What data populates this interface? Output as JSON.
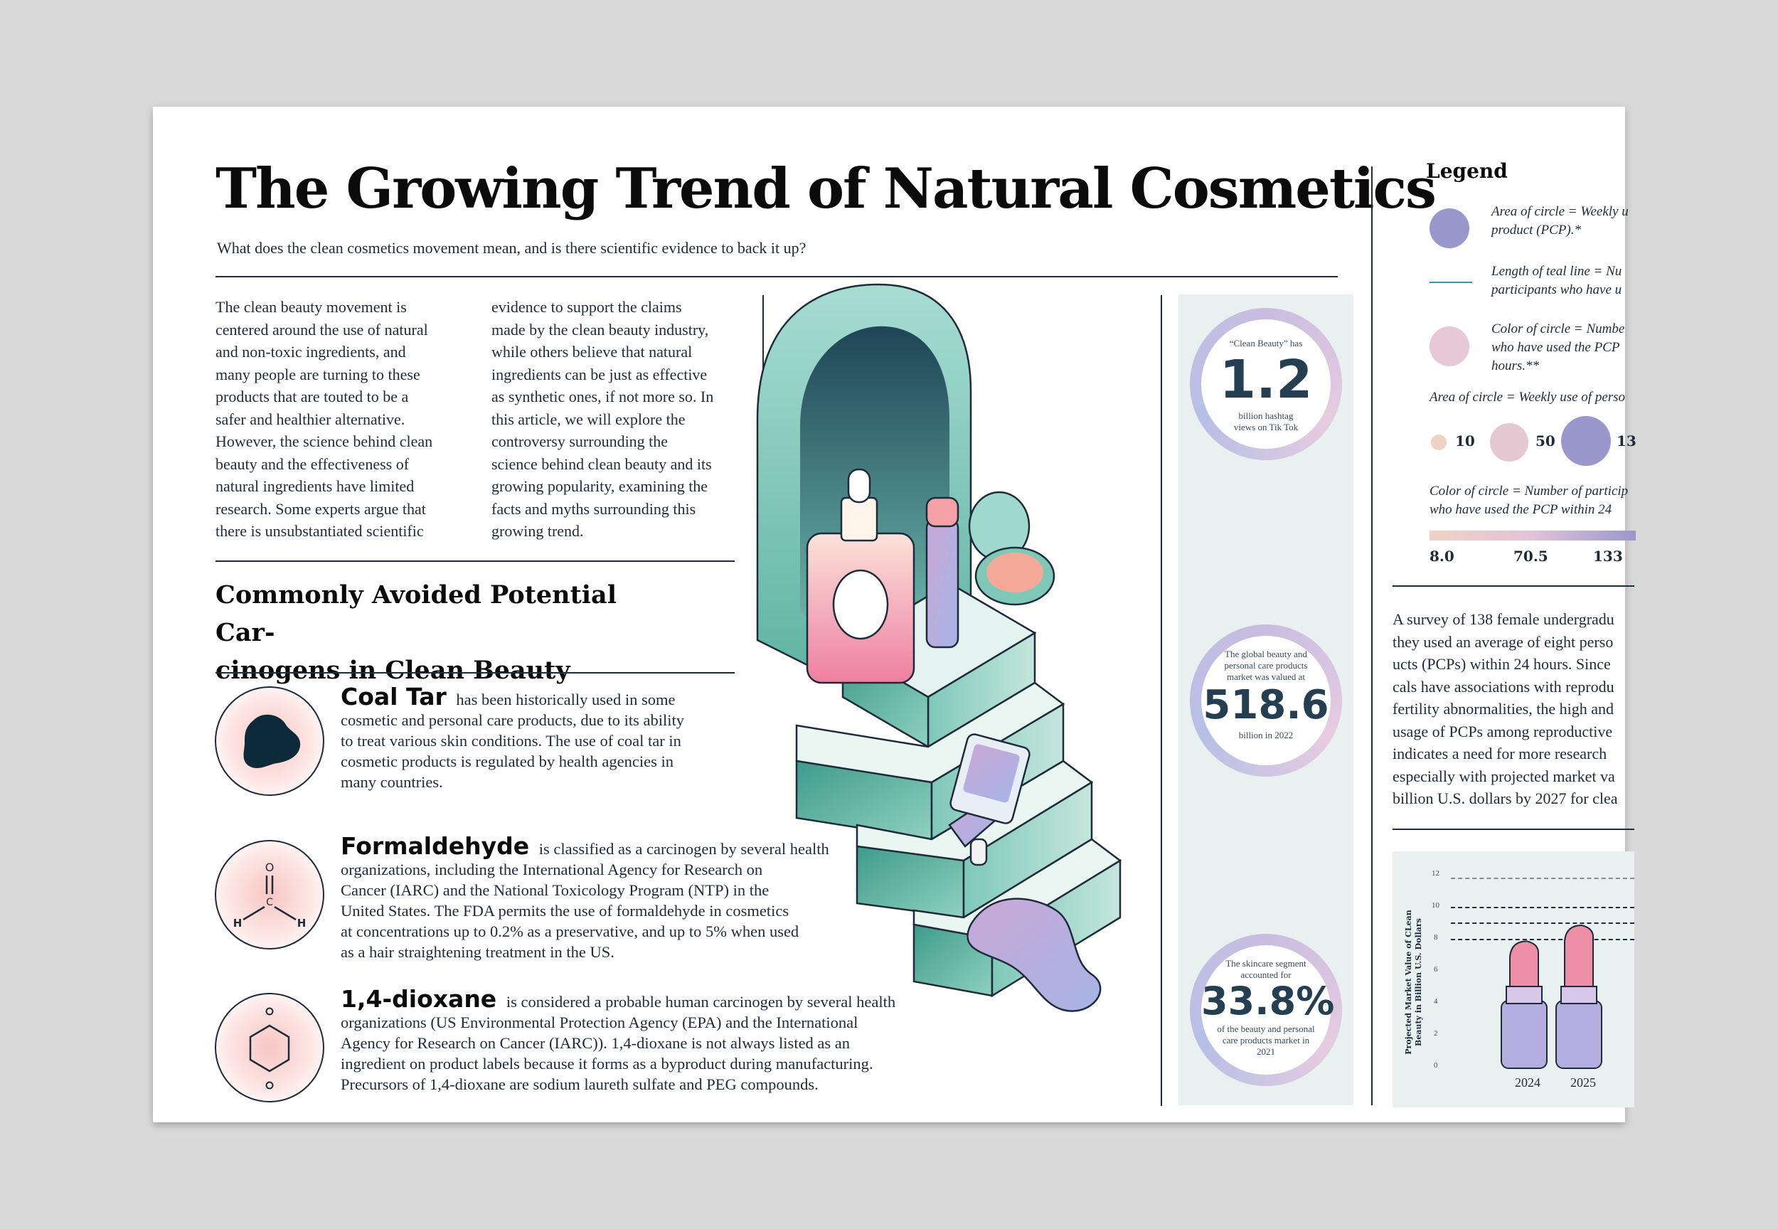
{
  "header": {
    "title": "The Growing Trend of Natural Cosmetics",
    "subtitle": "What does the clean cosmetics movement mean, and is there scientific evidence to back it up?"
  },
  "intro": {
    "col1": [
      "The clean beauty movement is",
      "centered around the use of natural",
      "and non-toxic ingredients, and",
      "many people are turning to these",
      "products that are touted to be a",
      "safer and healthier alternative.",
      "However, the science behind clean",
      "beauty and the effectiveness of",
      "natural ingredients have limited",
      "research. Some experts argue that",
      "there is unsubstantiated scientific"
    ],
    "col2": [
      "evidence to support the claims",
      "made by the clean beauty industry,",
      "while others believe that natural",
      "ingredients can be just as effective",
      "as synthetic ones, if not more so. In",
      "this article, we will explore the",
      "controversy surrounding the",
      "science behind clean beauty and its",
      "growing popularity, examining the",
      "facts and myths surrounding this",
      "growing trend."
    ]
  },
  "carcinogens": {
    "title_lines": [
      "Commonly Avoided Potential Car-",
      "cinogens  in Clean Beauty"
    ],
    "items": [
      {
        "name": "Coal Tar",
        "lines": [
          " has been historically used in some",
          "cosmetic and personal care products, due to its ability",
          "to treat various skin conditions. The use of coal tar in",
          "cosmetic products is regulated by health agencies in",
          "many countries."
        ]
      },
      {
        "name": "Formaldehyde",
        "lines": [
          " is classified as a carcinogen by several health",
          "organizations, including the International Agency for Research on",
          "Cancer (IARC) and the National Toxicology Program (NTP) in the",
          "United States. The FDA permits the use of formaldehyde in cosmetics",
          "at concentrations up to 0.2% as a preservative, and up to 5% when used",
          "as a hair straightening treatment in the US."
        ],
        "atoms": {
          "o": "O",
          "c": "C",
          "h1": "H",
          "h2": "H"
        }
      },
      {
        "name": "1,4-dioxane",
        "lines": [
          " is considered a probable human carcinogen by several health",
          "organizations (US Environmental Protection Agency (EPA) and the International",
          "Agency for Research on Cancer (IARC)). 1,4-dioxane is not always listed as an",
          "ingredient on product labels because it forms as a byproduct during manufacturing.",
          "Precursors of 1,4-dioxane are sodium laureth sulfate and PEG compounds."
        ]
      }
    ]
  },
  "stats": [
    {
      "top": "“Clean Beauty” has",
      "big": "1.2",
      "bottom": [
        "billion hashtag",
        "views on Tik Tok"
      ]
    },
    {
      "top": "The global beauty and\npersonal care products\nmarket was valued at",
      "big": "518.6",
      "bottom": [
        "billion in 2022"
      ]
    },
    {
      "top": "The skincare segment\naccounted for",
      "big": "33.8%",
      "bottom": [
        "of the beauty and personal",
        "care products market in",
        "2021"
      ]
    }
  ],
  "legend": {
    "title": "Legend",
    "entries": [
      {
        "lines": [
          "Area of circle = Weekly u",
          "product (PCP).*"
        ],
        "color": "#9a97cc"
      },
      {
        "lines": [
          "Length of teal line = Nu",
          "participants who have u"
        ],
        "color": "#3a9a9a"
      },
      {
        "lines": [
          "Color of circle = Numbe",
          "who have used the PCP",
          "hours.**"
        ],
        "color": "#e6c8d6"
      }
    ],
    "area_label": "Area of circle = Weekly use of perso",
    "sizes": [
      {
        "label": "10",
        "color": "#f0d2c4"
      },
      {
        "label": "50",
        "color": "#e6c8d2"
      },
      {
        "label": "13",
        "color": "#9a97cc"
      }
    ],
    "color_label_lines": [
      "Color of circle = Number of particip",
      "who have used the PCP within 24"
    ],
    "scale": [
      "8.0",
      "70.5",
      "133"
    ]
  },
  "survey": {
    "lines": [
      "A survey of 138 female undergradu",
      "they used an average of eight perso",
      "ucts (PCPs) within 24 hours. Since",
      "cals have associations with reprodu",
      "fertility abnormalities, the high and",
      "usage of PCPs among reproductive",
      "indicates a need for more research",
      "especially with projected market va",
      "billion U.S. dollars by 2027 for clea"
    ]
  },
  "chart_data": {
    "type": "bar",
    "ylabel": "Projected Market Value of CLean Beauty in Billion U.S. Dollars",
    "yticks": [
      "12",
      "10",
      "8",
      "6",
      "4",
      "2",
      "0"
    ],
    "ylim": [
      0,
      12
    ],
    "categories": [
      "2024",
      "2025"
    ],
    "values": [
      8,
      9
    ]
  }
}
